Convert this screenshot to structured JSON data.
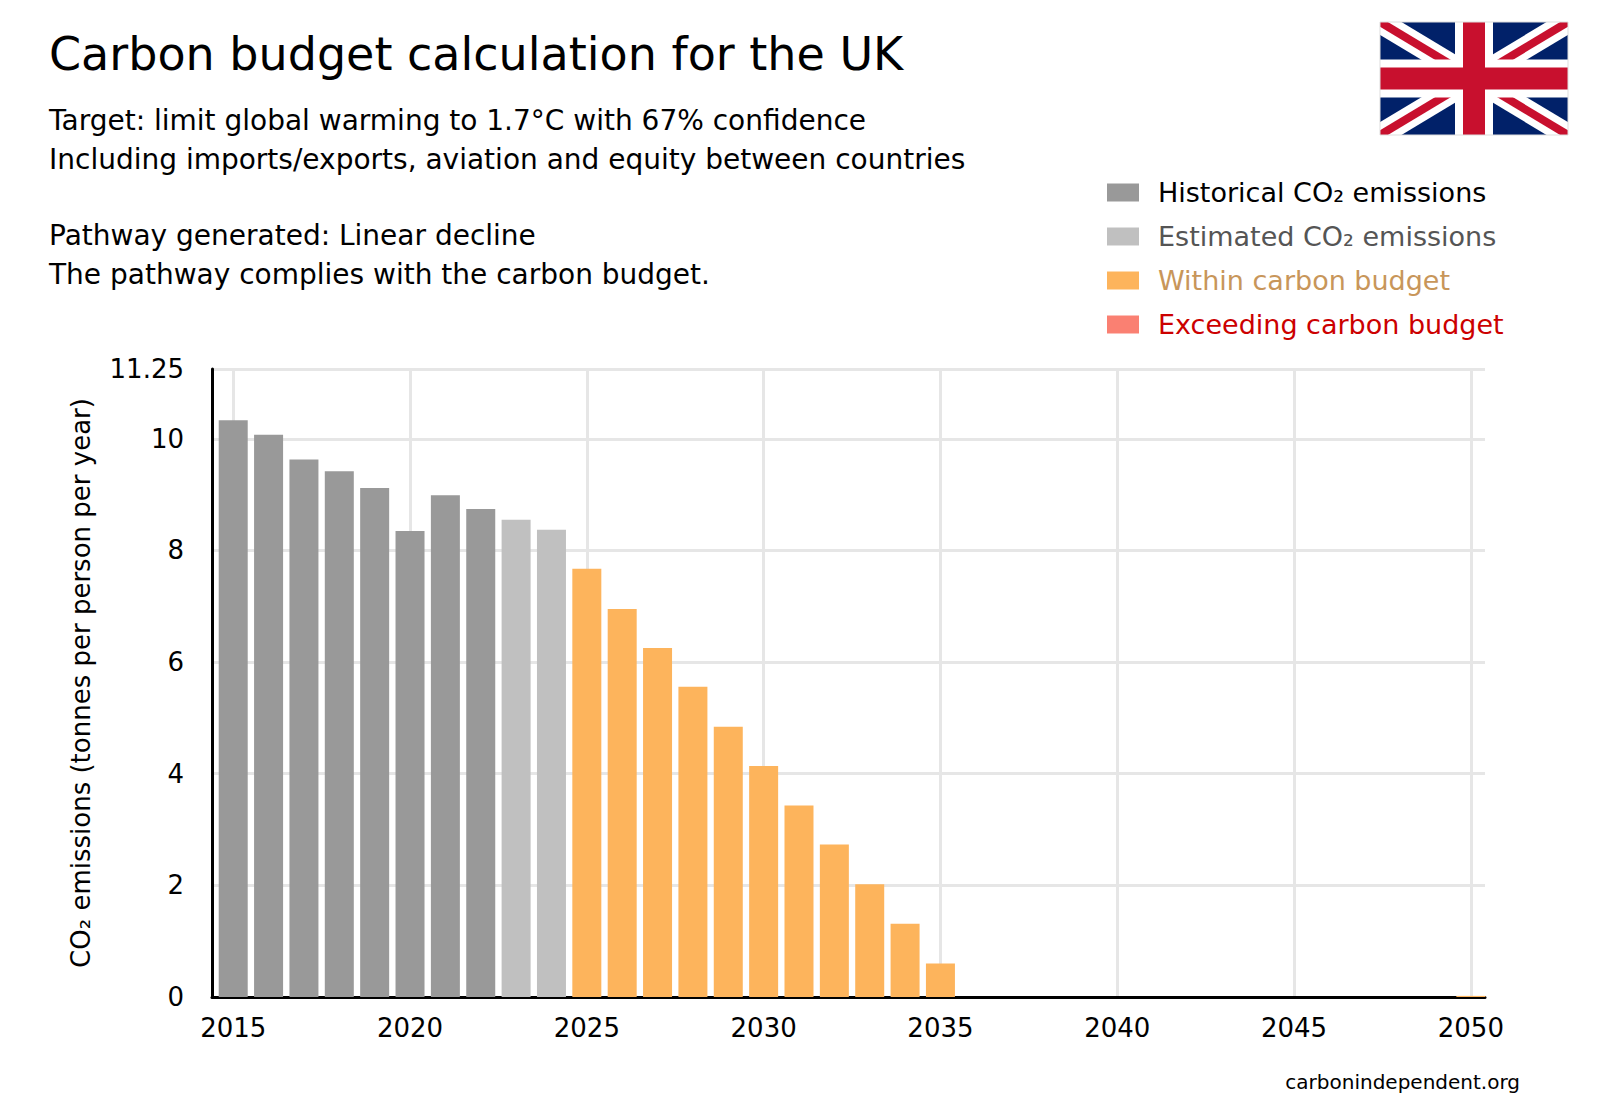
{
  "chart_data": {
    "type": "bar",
    "title": "Carbon budget calculation for the UK",
    "subtitle": [
      "Target: limit global warming to 1.7°C with 67% confidence",
      "Including imports/exports, aviation and equity between countries"
    ],
    "annotations": [
      "Pathway generated: Linear decline",
      "The pathway complies with the carbon budget."
    ],
    "source": "carbonindependent.org",
    "y_label": "CO₂ emissions (tonnes per person per year)",
    "x": [
      2015,
      2016,
      2017,
      2018,
      2019,
      2020,
      2021,
      2022,
      2023,
      2024,
      2025,
      2026,
      2027,
      2028,
      2029,
      2030,
      2031,
      2032,
      2033,
      2034,
      2035,
      2036,
      2037,
      2038,
      2039,
      2040,
      2041,
      2042,
      2043,
      2044,
      2045,
      2046,
      2047,
      2048,
      2049,
      2050
    ],
    "series": [
      {
        "name": "Historical CO₂ emissions",
        "color": "#999999",
        "values": [
          10.33,
          10.07,
          9.63,
          9.42,
          9.12,
          8.35,
          8.99,
          8.74,
          null,
          null,
          null,
          null,
          null,
          null,
          null,
          null,
          null,
          null,
          null,
          null,
          null,
          null,
          null,
          null,
          null,
          null,
          null,
          null,
          null,
          null,
          null,
          null,
          null,
          null,
          null,
          null
        ]
      },
      {
        "name": "Estimated CO₂ emissions",
        "color": "#c0c0c0",
        "values": [
          null,
          null,
          null,
          null,
          null,
          null,
          null,
          null,
          8.55,
          8.37,
          null,
          null,
          null,
          null,
          null,
          null,
          null,
          null,
          null,
          null,
          null,
          null,
          null,
          null,
          null,
          null,
          null,
          null,
          null,
          null,
          null,
          null,
          null,
          null,
          null,
          null
        ]
      },
      {
        "name": "Within carbon budget",
        "color": "#fdb45c",
        "values": [
          null,
          null,
          null,
          null,
          null,
          null,
          null,
          null,
          null,
          null,
          7.67,
          6.95,
          6.25,
          5.56,
          4.84,
          4.14,
          3.43,
          2.73,
          2.02,
          1.31,
          0.6,
          0,
          0,
          0,
          0,
          0,
          0,
          0,
          0,
          0,
          0,
          0,
          0,
          0,
          0,
          0.02
        ]
      },
      {
        "name": "Exceeding carbon budget",
        "color": "#fa8072",
        "values": [
          null,
          null,
          null,
          null,
          null,
          null,
          null,
          null,
          null,
          null,
          null,
          null,
          null,
          null,
          null,
          null,
          null,
          null,
          null,
          null,
          null,
          null,
          null,
          null,
          null,
          null,
          null,
          null,
          null,
          null,
          null,
          null,
          null,
          null,
          null,
          null
        ]
      }
    ],
    "xlim": [
      2014.4,
      2050.4
    ],
    "xticks": [
      2015,
      2020,
      2025,
      2030,
      2035,
      2040,
      2045,
      2050
    ],
    "ylim": [
      0,
      11.25
    ],
    "yticks": [
      0,
      2,
      4,
      6,
      8,
      10
    ],
    "grid": true,
    "legend": "top-right"
  }
}
